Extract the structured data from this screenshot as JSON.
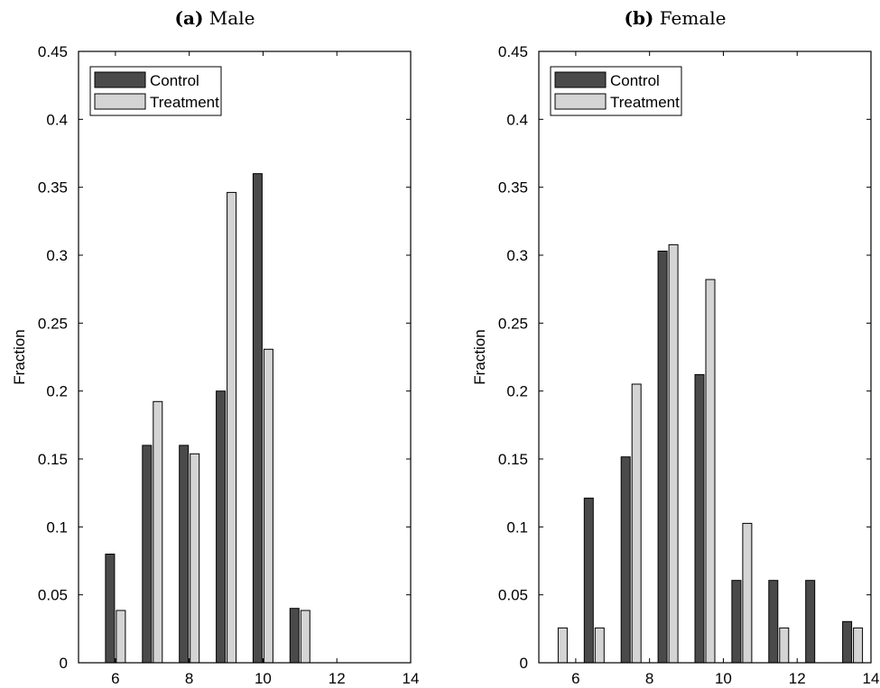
{
  "chart_data": [
    {
      "type": "bar",
      "title_tag": "(a)",
      "title": "Male",
      "xlabel": "",
      "ylabel": "Fraction",
      "xlim": [
        5,
        14
      ],
      "ylim": [
        0,
        0.45
      ],
      "xticks": [
        "6",
        "8",
        "10",
        "12",
        "14"
      ],
      "xtick_values": [
        6,
        8,
        10,
        12,
        14
      ],
      "yticks": [
        "0",
        "0.05",
        "0.1",
        "0.15",
        "0.2",
        "0.25",
        "0.3",
        "0.35",
        "0.4",
        "0.45"
      ],
      "ytick_values": [
        0,
        0.05,
        0.1,
        0.15,
        0.2,
        0.25,
        0.3,
        0.35,
        0.4,
        0.45
      ],
      "legend_position": "top-left",
      "x": [
        6,
        7,
        8,
        9,
        10,
        11,
        12,
        13
      ],
      "series": [
        {
          "name": "Control",
          "color": "#4a4a4a",
          "values": [
            0.08,
            0.16,
            0.16,
            0.2,
            0.36,
            0.04,
            0,
            0
          ]
        },
        {
          "name": "Treatment",
          "color": "#d4d4d4",
          "values": [
            0.0385,
            0.1923,
            0.1538,
            0.3462,
            0.2308,
            0.0385,
            0,
            0
          ]
        }
      ]
    },
    {
      "type": "bar",
      "title_tag": "(b)",
      "title": "Female",
      "xlabel": "",
      "ylabel": "Fraction",
      "xlim": [
        5,
        14
      ],
      "ylim": [
        0,
        0.45
      ],
      "xticks": [
        "6",
        "8",
        "10",
        "12",
        "14"
      ],
      "xtick_values": [
        6,
        8,
        10,
        12,
        14
      ],
      "yticks": [
        "0",
        "0.05",
        "0.1",
        "0.15",
        "0.2",
        "0.25",
        "0.3",
        "0.35",
        "0.4",
        "0.45"
      ],
      "ytick_values": [
        0,
        0.05,
        0.1,
        0.15,
        0.2,
        0.25,
        0.3,
        0.35,
        0.4,
        0.45
      ],
      "legend_position": "top-left",
      "x": [
        5.5,
        6.5,
        7.5,
        8.5,
        9.5,
        10.5,
        11.5,
        12.5,
        13.5
      ],
      "series": [
        {
          "name": "Control",
          "color": "#4a4a4a",
          "values": [
            0,
            0.1212,
            0.1515,
            0.303,
            0.2121,
            0.0606,
            0.0606,
            0.0606,
            0.0303
          ]
        },
        {
          "name": "Treatment",
          "color": "#d4d4d4",
          "values": [
            0.0256,
            0.0256,
            0.2051,
            0.3077,
            0.2821,
            0.1026,
            0.0256,
            0,
            0.0256
          ]
        }
      ]
    }
  ]
}
